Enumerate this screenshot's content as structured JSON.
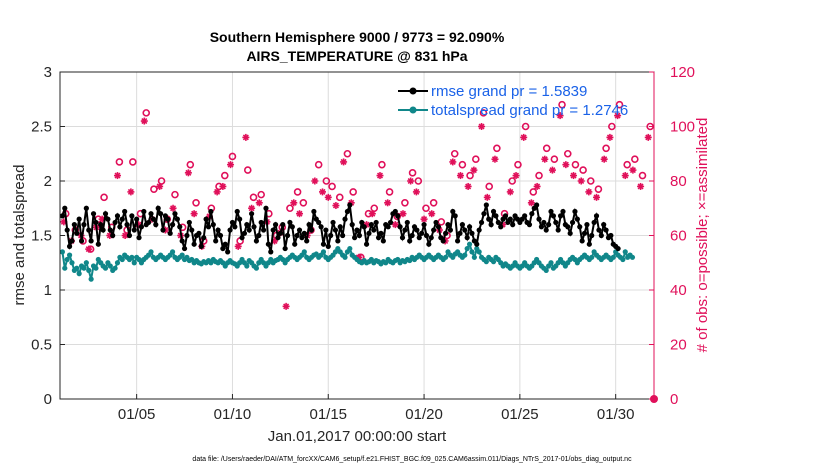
{
  "chart_data": {
    "type": "line",
    "title": "Southern Hemisphere 9000 / 9773 = 92.090%",
    "subtitle": "AIRS_TEMPERATURE @ 831 hPa",
    "xlabel": "Jan.01,2017 00:00:00 start",
    "ylabel": "rmse and totalspread",
    "ylabel_right": "# of obs: o=possible; ×=assimilated",
    "footer": "data file: /Users/raeder/DAI/ATM_forcXX/CAM6_setup/f.e21.FHIST_BGC.f09_025.CAM6assim.011/Diags_NTrS_2017-01/obs_diag_output.nc",
    "xlim": [
      1.0,
      32.0
    ],
    "ylim": [
      0,
      3
    ],
    "ylim_right": [
      0,
      120
    ],
    "x_ticks": [
      5,
      10,
      15,
      20,
      25,
      30
    ],
    "x_tick_labels": [
      "01/05",
      "01/10",
      "01/15",
      "01/20",
      "01/25",
      "01/30"
    ],
    "y_ticks": [
      "0",
      "0.5",
      "1",
      "1.5",
      "2",
      "2.5",
      "3"
    ],
    "y_ticks_right": [
      "0",
      "20",
      "40",
      "60",
      "80",
      "100",
      "120"
    ],
    "grid": true,
    "legend_position": "top-right",
    "series": [
      {
        "name": "rmse grand pr = 1.5839",
        "color": "#000000",
        "marker": "filled-circle",
        "axis": "left",
        "x_start": 1.125,
        "x_step": 0.125,
        "values": [
          1.68,
          1.75,
          1.55,
          1.4,
          1.45,
          1.6,
          1.52,
          1.65,
          1.45,
          1.6,
          1.75,
          1.55,
          1.45,
          1.7,
          1.62,
          1.42,
          1.6,
          1.55,
          1.7,
          1.65,
          1.55,
          1.5,
          1.62,
          1.68,
          1.58,
          1.65,
          1.72,
          1.6,
          1.5,
          1.68,
          1.55,
          1.65,
          1.48,
          1.58,
          1.72,
          1.6,
          1.62,
          1.7,
          1.65,
          1.6,
          1.75,
          1.7,
          1.55,
          1.68,
          1.65,
          1.52,
          1.6,
          1.7,
          1.65,
          1.58,
          1.45,
          1.38,
          1.5,
          1.62,
          1.55,
          1.42,
          1.5,
          1.52,
          1.4,
          1.48,
          1.65,
          1.58,
          1.72,
          1.6,
          1.45,
          1.55,
          1.5,
          1.38,
          1.42,
          1.35,
          1.55,
          1.62,
          1.58,
          1.72,
          1.65,
          1.48,
          1.52,
          1.6,
          1.55,
          1.7,
          1.58,
          1.45,
          1.5,
          1.62,
          1.55,
          1.75,
          1.42,
          1.35,
          1.55,
          1.6,
          1.48,
          1.52,
          1.6,
          1.38,
          1.5,
          1.62,
          1.58,
          1.42,
          1.5,
          1.55,
          1.48,
          1.52,
          1.45,
          1.6,
          1.55,
          1.72,
          1.65,
          1.62,
          1.58,
          1.42,
          1.55,
          1.4,
          1.5,
          1.62,
          1.55,
          1.45,
          1.58,
          1.5,
          1.65,
          1.72,
          1.78,
          1.6,
          1.48,
          1.55,
          1.5,
          1.62,
          1.58,
          1.42,
          1.52,
          1.6,
          1.55,
          1.62,
          1.48,
          1.52,
          1.45,
          1.6,
          1.58,
          1.62,
          1.7,
          1.72,
          1.68,
          1.58,
          1.48,
          1.55,
          1.62,
          1.45,
          1.5,
          1.58,
          1.55,
          1.48,
          1.52,
          1.6,
          1.5,
          1.42,
          1.48,
          1.55,
          1.62,
          1.58,
          1.48,
          1.45,
          1.52,
          1.6,
          1.55,
          1.72,
          1.68,
          1.45,
          1.52,
          1.6,
          1.55,
          1.48,
          1.58,
          1.52,
          1.45,
          1.42,
          1.55,
          1.62,
          1.7,
          1.78,
          1.65,
          1.6,
          1.72,
          1.68,
          1.62,
          1.58,
          1.65,
          1.68,
          1.62,
          1.65,
          1.6,
          1.68,
          1.65,
          1.62,
          1.65,
          1.68,
          1.62,
          1.6,
          1.7,
          1.75,
          1.78,
          1.65,
          1.58,
          1.62,
          1.55,
          1.6,
          1.72,
          1.68,
          1.62,
          1.55,
          1.68,
          1.72,
          1.6,
          1.58,
          1.52,
          1.62,
          1.72,
          1.65,
          1.58,
          1.45,
          1.52,
          1.6,
          1.42,
          1.5,
          1.62,
          1.68,
          1.55,
          1.5,
          1.6,
          1.55,
          1.48,
          1.5,
          1.42,
          1.4,
          1.38
        ]
      },
      {
        "name": "totalspread grand pr = 1.2746",
        "color": "#10878a",
        "marker": "filled-circle",
        "axis": "left",
        "x_start": 1.125,
        "x_step": 0.125,
        "values": [
          1.35,
          1.2,
          1.28,
          1.32,
          1.25,
          1.18,
          1.2,
          1.15,
          1.22,
          1.2,
          1.25,
          1.18,
          1.1,
          1.22,
          1.2,
          1.28,
          1.25,
          1.22,
          1.2,
          1.25,
          1.22,
          1.18,
          1.2,
          1.25,
          1.3,
          1.28,
          1.32,
          1.3,
          1.28,
          1.3,
          1.25,
          1.3,
          1.28,
          1.25,
          1.28,
          1.3,
          1.32,
          1.35,
          1.3,
          1.28,
          1.3,
          1.32,
          1.3,
          1.28,
          1.3,
          1.32,
          1.35,
          1.3,
          1.28,
          1.3,
          1.32,
          1.28,
          1.3,
          1.27,
          1.28,
          1.25,
          1.27,
          1.25,
          1.24,
          1.26,
          1.25,
          1.27,
          1.25,
          1.28,
          1.26,
          1.25,
          1.27,
          1.25,
          1.22,
          1.25,
          1.27,
          1.25,
          1.24,
          1.22,
          1.25,
          1.28,
          1.25,
          1.22,
          1.27,
          1.25,
          1.22,
          1.2,
          1.25,
          1.28,
          1.25,
          1.22,
          1.25,
          1.28,
          1.25,
          1.27,
          1.28,
          1.3,
          1.28,
          1.25,
          1.28,
          1.3,
          1.32,
          1.3,
          1.28,
          1.3,
          1.32,
          1.35,
          1.3,
          1.28,
          1.3,
          1.32,
          1.33,
          1.3,
          1.32,
          1.35,
          1.3,
          1.28,
          1.3,
          1.32,
          1.35,
          1.38,
          1.35,
          1.32,
          1.3,
          1.35,
          1.38,
          1.32,
          1.3,
          1.28,
          1.26,
          1.25,
          1.27,
          1.25,
          1.26,
          1.28,
          1.25,
          1.27,
          1.26,
          1.24,
          1.26,
          1.25,
          1.28,
          1.26,
          1.25,
          1.27,
          1.28,
          1.25,
          1.27,
          1.26,
          1.28,
          1.27,
          1.3,
          1.28,
          1.3,
          1.32,
          1.3,
          1.28,
          1.3,
          1.32,
          1.3,
          1.28,
          1.3,
          1.32,
          1.3,
          1.28,
          1.3,
          1.35,
          1.32,
          1.3,
          1.33,
          1.35,
          1.32,
          1.3,
          1.32,
          1.38,
          1.42,
          1.35,
          1.3,
          1.38,
          1.35,
          1.3,
          1.28,
          1.26,
          1.3,
          1.28,
          1.26,
          1.3,
          1.28,
          1.25,
          1.22,
          1.24,
          1.22,
          1.2,
          1.22,
          1.25,
          1.22,
          1.2,
          1.22,
          1.25,
          1.22,
          1.2,
          1.22,
          1.25,
          1.28,
          1.25,
          1.22,
          1.2,
          1.18,
          1.22,
          1.25,
          1.2,
          1.22,
          1.25,
          1.28,
          1.25,
          1.22,
          1.25,
          1.28,
          1.3,
          1.28,
          1.25,
          1.28,
          1.3,
          1.32,
          1.3,
          1.28,
          1.3,
          1.35,
          1.32,
          1.3,
          1.28,
          1.3,
          1.32,
          1.3,
          1.28,
          1.3,
          1.35,
          1.32,
          1.3,
          1.28,
          1.35,
          1.3,
          1.32,
          1.3
        ]
      },
      {
        "name": "# obs possible",
        "color": "#e0105a",
        "marker": "open-circle",
        "axis": "right",
        "points": [
          [
            1.3,
            68
          ],
          [
            1.8,
            62
          ],
          [
            2.2,
            58
          ],
          [
            2.6,
            55
          ],
          [
            3.0,
            66
          ],
          [
            3.3,
            74
          ],
          [
            3.7,
            63
          ],
          [
            4.1,
            87
          ],
          [
            4.5,
            62
          ],
          [
            4.8,
            87
          ],
          [
            5.2,
            68
          ],
          [
            5.5,
            105
          ],
          [
            5.9,
            77
          ],
          [
            6.3,
            80
          ],
          [
            6.6,
            66
          ],
          [
            7.0,
            75
          ],
          [
            7.4,
            63
          ],
          [
            7.8,
            86
          ],
          [
            8.1,
            72
          ],
          [
            8.5,
            58
          ],
          [
            8.9,
            70
          ],
          [
            9.3,
            78
          ],
          [
            9.6,
            82
          ],
          [
            10.0,
            89
          ],
          [
            10.4,
            58
          ],
          [
            10.8,
            84
          ],
          [
            11.1,
            74
          ],
          [
            11.5,
            75
          ],
          [
            11.9,
            68
          ],
          [
            12.3,
            60
          ],
          [
            12.6,
            63
          ],
          [
            13.0,
            70
          ],
          [
            13.4,
            76
          ],
          [
            13.7,
            72
          ],
          [
            14.1,
            62
          ],
          [
            14.5,
            86
          ],
          [
            14.9,
            80
          ],
          [
            15.2,
            78
          ],
          [
            15.6,
            74
          ],
          [
            16.0,
            90
          ],
          [
            16.3,
            76
          ],
          [
            16.7,
            52
          ],
          [
            17.1,
            68
          ],
          [
            17.4,
            70
          ],
          [
            17.8,
            86
          ],
          [
            18.2,
            76
          ],
          [
            18.6,
            67
          ],
          [
            19.0,
            72
          ],
          [
            19.4,
            83
          ],
          [
            19.7,
            80
          ],
          [
            20.1,
            70
          ],
          [
            20.5,
            72
          ],
          [
            20.9,
            65
          ],
          [
            21.2,
            60
          ],
          [
            21.6,
            90
          ],
          [
            22.0,
            86
          ],
          [
            22.4,
            82
          ],
          [
            22.7,
            88
          ],
          [
            23.1,
            105
          ],
          [
            23.4,
            78
          ],
          [
            23.8,
            92
          ],
          [
            24.2,
            68
          ],
          [
            24.6,
            80
          ],
          [
            24.9,
            86
          ],
          [
            25.3,
            100
          ],
          [
            25.7,
            76
          ],
          [
            26.0,
            82
          ],
          [
            26.4,
            92
          ],
          [
            26.8,
            88
          ],
          [
            27.2,
            108
          ],
          [
            27.5,
            90
          ],
          [
            27.9,
            86
          ],
          [
            28.3,
            84
          ],
          [
            28.7,
            80
          ],
          [
            29.1,
            77
          ],
          [
            29.5,
            92
          ],
          [
            29.8,
            100
          ],
          [
            30.2,
            108
          ],
          [
            30.6,
            86
          ],
          [
            31.0,
            88
          ],
          [
            31.4,
            82
          ],
          [
            31.8,
            100
          ]
        ]
      },
      {
        "name": "# obs assimilated",
        "color": "#e0105a",
        "marker": "asterisk",
        "axis": "right",
        "points": [
          [
            1.2,
            65
          ],
          [
            1.6,
            58
          ],
          [
            2.1,
            60
          ],
          [
            2.5,
            55
          ],
          [
            2.9,
            63
          ],
          [
            3.2,
            66
          ],
          [
            3.6,
            60
          ],
          [
            4.0,
            82
          ],
          [
            4.4,
            60
          ],
          [
            4.7,
            76
          ],
          [
            5.1,
            64
          ],
          [
            5.4,
            102
          ],
          [
            5.8,
            66
          ],
          [
            6.2,
            78
          ],
          [
            6.5,
            62
          ],
          [
            6.9,
            70
          ],
          [
            7.3,
            60
          ],
          [
            7.7,
            83
          ],
          [
            8.0,
            68
          ],
          [
            8.4,
            56
          ],
          [
            8.8,
            67
          ],
          [
            9.2,
            76
          ],
          [
            9.5,
            78
          ],
          [
            9.9,
            86
          ],
          [
            10.3,
            56
          ],
          [
            10.7,
            96
          ],
          [
            11.0,
            70
          ],
          [
            11.4,
            72
          ],
          [
            11.8,
            65
          ],
          [
            12.2,
            58
          ],
          [
            12.5,
            61
          ],
          [
            12.8,
            34
          ],
          [
            13.2,
            72
          ],
          [
            13.5,
            68
          ],
          [
            13.9,
            60
          ],
          [
            14.3,
            80
          ],
          [
            14.7,
            76
          ],
          [
            15.0,
            74
          ],
          [
            15.4,
            71
          ],
          [
            15.8,
            87
          ],
          [
            16.2,
            72
          ],
          [
            16.6,
            52
          ],
          [
            17.0,
            64
          ],
          [
            17.3,
            68
          ],
          [
            17.7,
            82
          ],
          [
            18.1,
            72
          ],
          [
            18.5,
            64
          ],
          [
            18.9,
            68
          ],
          [
            19.3,
            80
          ],
          [
            19.6,
            76
          ],
          [
            20.0,
            66
          ],
          [
            20.4,
            68
          ],
          [
            20.8,
            62
          ],
          [
            21.1,
            58
          ],
          [
            21.5,
            87
          ],
          [
            21.9,
            82
          ],
          [
            22.3,
            78
          ],
          [
            22.6,
            84
          ],
          [
            23.0,
            100
          ],
          [
            23.3,
            74
          ],
          [
            23.7,
            88
          ],
          [
            24.1,
            64
          ],
          [
            24.5,
            76
          ],
          [
            24.8,
            82
          ],
          [
            25.2,
            96
          ],
          [
            25.6,
            72
          ],
          [
            25.9,
            78
          ],
          [
            26.3,
            88
          ],
          [
            26.7,
            84
          ],
          [
            27.1,
            104
          ],
          [
            27.4,
            86
          ],
          [
            27.8,
            82
          ],
          [
            28.2,
            80
          ],
          [
            28.6,
            76
          ],
          [
            29.0,
            74
          ],
          [
            29.4,
            88
          ],
          [
            29.7,
            96
          ],
          [
            30.1,
            104
          ],
          [
            30.5,
            82
          ],
          [
            30.9,
            84
          ],
          [
            31.3,
            78
          ],
          [
            31.7,
            96
          ]
        ]
      }
    ]
  }
}
